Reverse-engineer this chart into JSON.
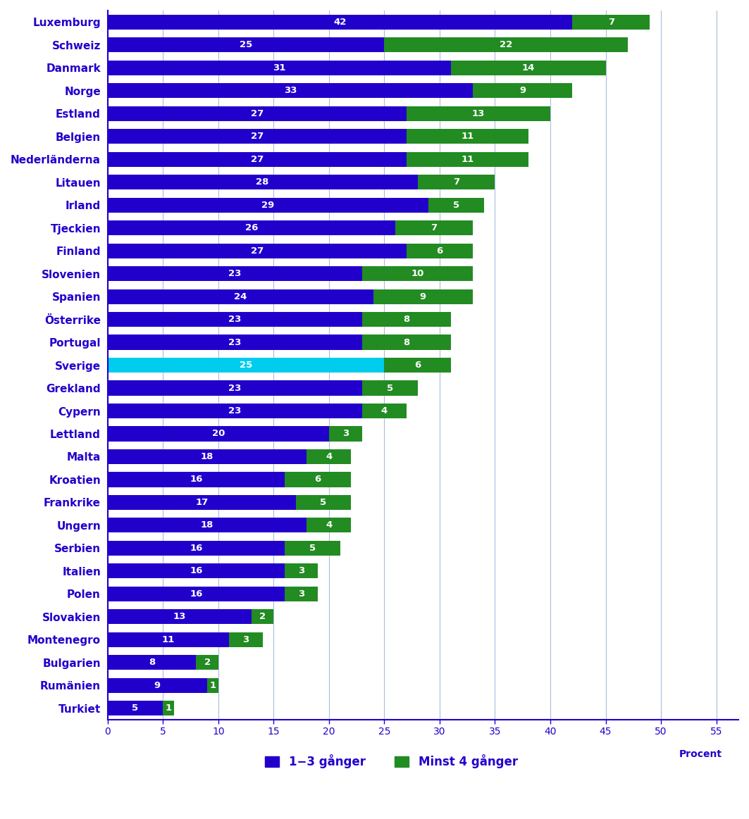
{
  "countries": [
    "Luxemburg",
    "Schweiz",
    "Danmark",
    "Norge",
    "Estland",
    "Belgien",
    "Nederländerna",
    "Litauen",
    "Irland",
    "Tjeckien",
    "Finland",
    "Slovenien",
    "Spanien",
    "Österrike",
    "Portugal",
    "Sverige",
    "Grekland",
    "Cypern",
    "Lettland",
    "Malta",
    "Kroatien",
    "Frankrike",
    "Ungern",
    "Serbien",
    "Italien",
    "Polen",
    "Slovakien",
    "Montenegro",
    "Bulgarien",
    "Rumänien",
    "Turkiet"
  ],
  "values_1_3": [
    42,
    25,
    31,
    33,
    27,
    27,
    27,
    28,
    29,
    26,
    27,
    23,
    24,
    23,
    23,
    25,
    23,
    23,
    20,
    18,
    16,
    17,
    18,
    16,
    16,
    16,
    13,
    11,
    8,
    9,
    5
  ],
  "values_4plus": [
    7,
    22,
    14,
    9,
    13,
    11,
    11,
    7,
    5,
    7,
    6,
    10,
    9,
    8,
    8,
    6,
    5,
    4,
    3,
    4,
    6,
    5,
    4,
    5,
    3,
    3,
    2,
    3,
    2,
    1,
    1
  ],
  "color_1_3": "#2200CC",
  "color_1_3_sverige": "#00CCEE",
  "color_4plus": "#228B22",
  "background_color": "#FFFFFF",
  "grid_color": "#AABBDD",
  "text_color": "#2200CC",
  "label_1_3": "1−3 gånger",
  "label_4plus": "Minst 4 gånger",
  "xlabel": "Procent",
  "xlim": [
    0,
    57
  ],
  "xticks": [
    0,
    5,
    10,
    15,
    20,
    25,
    30,
    35,
    40,
    45,
    50,
    55
  ]
}
